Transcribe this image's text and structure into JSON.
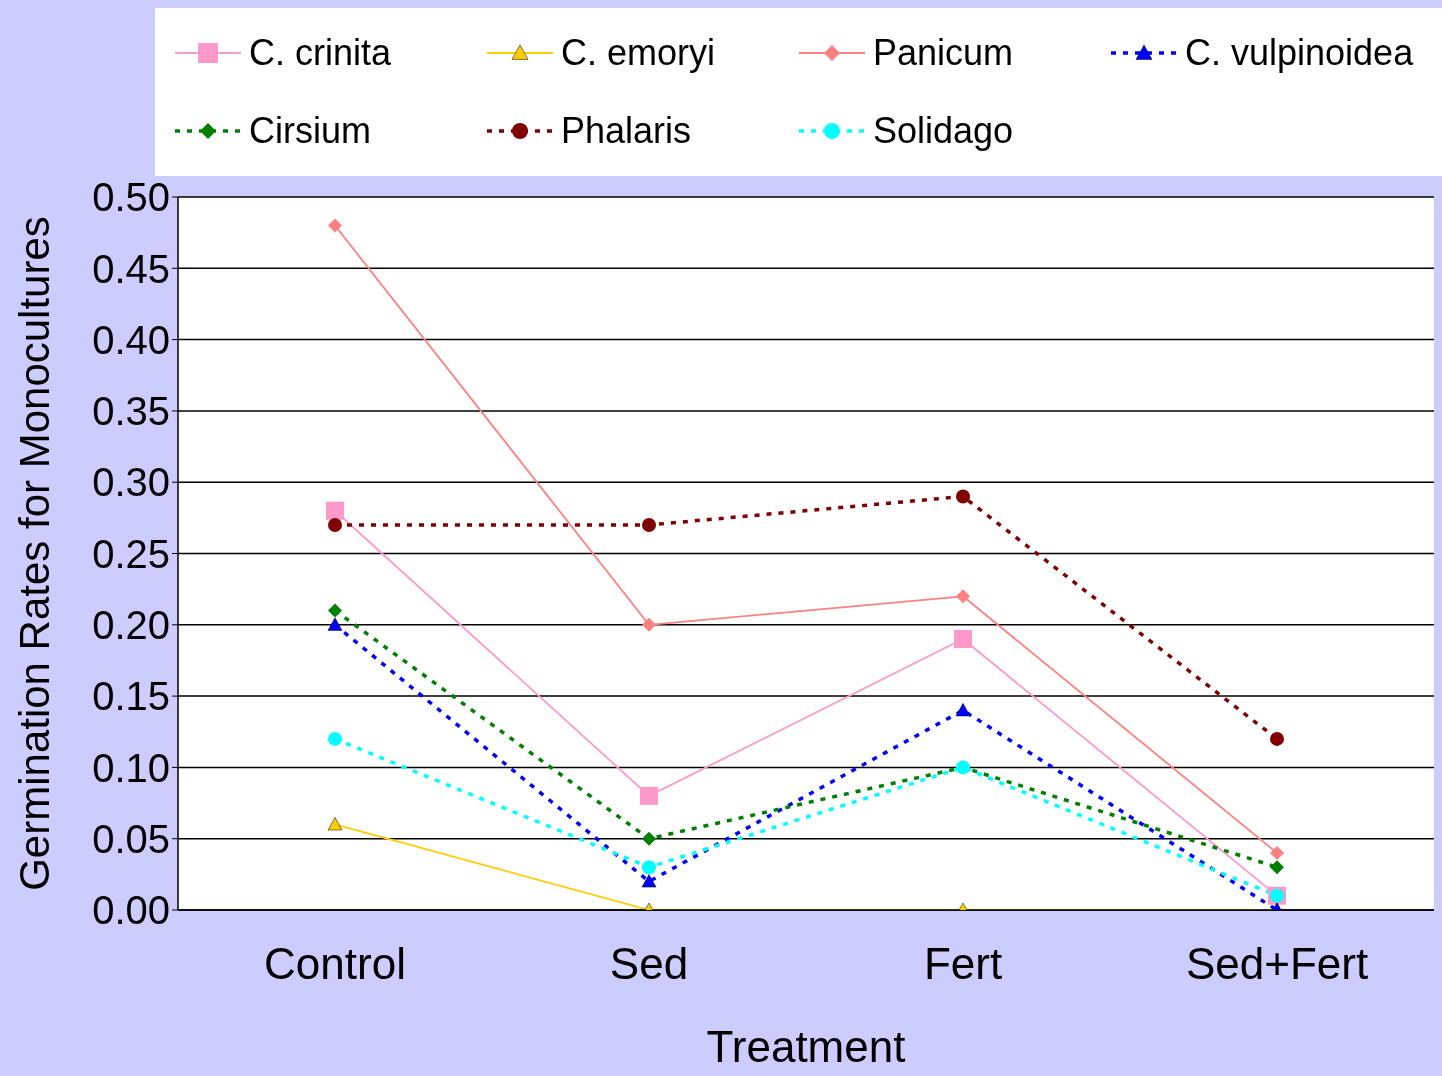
{
  "chart_data": {
    "type": "line",
    "xlabel": "Treatment",
    "ylabel": "Germination Rates for Monocultures",
    "categories": [
      "Control",
      "Sed",
      "Fert",
      "Sed+Fert"
    ],
    "series": [
      {
        "name": "C. crinita",
        "color": "#ff99cc",
        "marker": "square",
        "line_style": "solid",
        "values": [
          0.28,
          0.08,
          0.19,
          0.01
        ]
      },
      {
        "name": "C. emoryi",
        "color": "#ffcc00",
        "marker": "triangle",
        "line_style": "solid",
        "values": [
          0.06,
          0,
          0,
          0
        ]
      },
      {
        "name": "Panicum",
        "color": "#ff8080",
        "marker": "diamond",
        "line_style": "solid",
        "values": [
          0.48,
          0.2,
          0.22,
          0.04
        ]
      },
      {
        "name": "C. vulpinoidea",
        "color": "#0000ff",
        "marker": "triangle",
        "line_style": "dotted",
        "values": [
          0.2,
          0.02,
          0.14,
          0
        ]
      },
      {
        "name": "Cirsium",
        "color": "#008000",
        "marker": "diamond",
        "line_style": "dotted",
        "values": [
          0.21,
          0.05,
          0.1,
          0.03
        ]
      },
      {
        "name": "Phalaris",
        "color": "#800000",
        "marker": "circle",
        "line_style": "dotted",
        "values": [
          0.27,
          0.27,
          0.29,
          0.12
        ]
      },
      {
        "name": "Solidago",
        "color": "#00ffff",
        "marker": "circle",
        "line_style": "dotted",
        "values": [
          0.12,
          0.03,
          0.1,
          0.01
        ]
      }
    ],
    "ylim": [
      0,
      0.5
    ],
    "yticks": [
      {
        "value": 0,
        "label": "0.00"
      },
      {
        "value": 0.05,
        "label": "0.05"
      },
      {
        "value": 0.1,
        "label": "0.10"
      },
      {
        "value": 0.15,
        "label": "0.15"
      },
      {
        "value": 0.2,
        "label": "0.20"
      },
      {
        "value": 0.25,
        "label": "0.25"
      },
      {
        "value": 0.3,
        "label": "0.30"
      },
      {
        "value": 0.35,
        "label": "0.35"
      },
      {
        "value": 0.4,
        "label": "0.40"
      },
      {
        "value": 0.45,
        "label": "0.45"
      },
      {
        "value": 0.5,
        "label": "0.50"
      }
    ],
    "grid": "y",
    "legend": "top"
  }
}
